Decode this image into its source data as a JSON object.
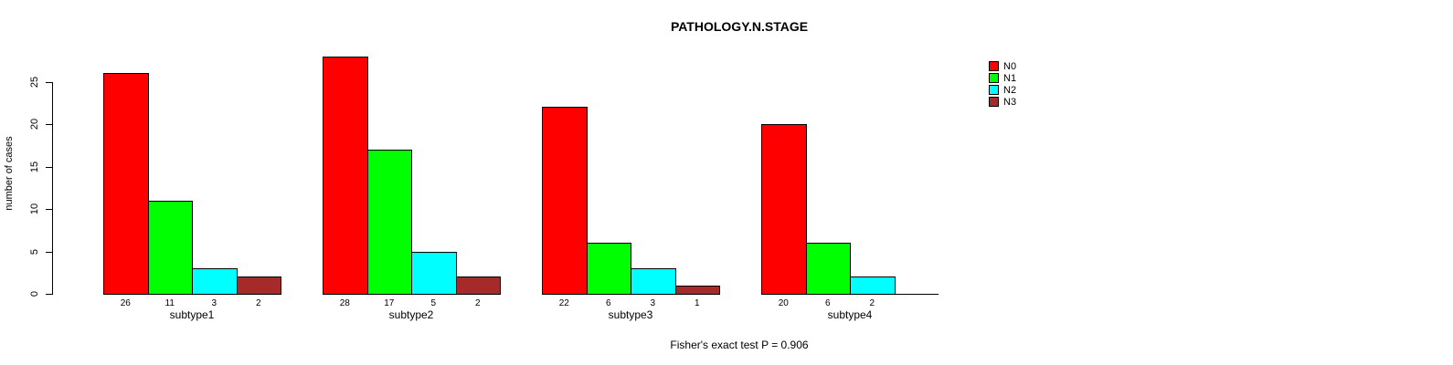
{
  "chart_data": {
    "type": "bar",
    "title": "PATHOLOGY.N.STAGE",
    "categories": [
      "subtype1",
      "subtype2",
      "subtype3",
      "subtype4"
    ],
    "series": [
      {
        "name": "N0",
        "color": "#FF0000",
        "values": [
          26,
          28,
          22,
          20
        ]
      },
      {
        "name": "N1",
        "color": "#00FF00",
        "values": [
          11,
          17,
          6,
          6
        ]
      },
      {
        "name": "N2",
        "color": "#00FFFF",
        "values": [
          3,
          5,
          3,
          2
        ]
      },
      {
        "name": "N3",
        "color": "#A52A2A",
        "values": [
          2,
          2,
          1,
          0
        ]
      }
    ],
    "xlabel": "",
    "ylabel": "number of cases",
    "yticks": [
      0,
      5,
      10,
      15,
      20,
      25
    ],
    "ylim": [
      0,
      28
    ],
    "grid": false,
    "legend_position": "top-right",
    "legend_entries": [
      "N0",
      "N1",
      "N2",
      "N3"
    ],
    "bar_value_labels": [
      [
        "26",
        "11",
        "3",
        "2"
      ],
      [
        "28",
        "17",
        "5",
        "2"
      ],
      [
        "22",
        "6",
        "3",
        "1"
      ],
      [
        "20",
        "6",
        "2",
        ""
      ]
    ],
    "annotation": "Fisher's exact test P = 0.906",
    "axis_color": "#000000",
    "background_color": "#FFFFFF"
  }
}
